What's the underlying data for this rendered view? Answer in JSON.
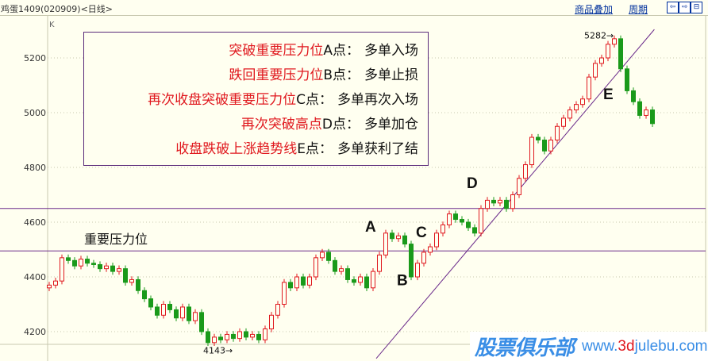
{
  "header": {
    "title": "鸡蛋1409(020909)<日线>",
    "overlay_link": "商品叠加",
    "period_link": "周期",
    "nav_icons": [
      "arrow-left-icon",
      "arrow-right-icon",
      "split-icon"
    ]
  },
  "chart_data": {
    "type": "candlestick",
    "panel_label": "K",
    "ylim": [
      4130,
      5300
    ],
    "yticks": [
      4200,
      4400,
      4600,
      4800,
      5000,
      5200
    ],
    "up_color": "#e0181e",
    "down_color": "#1a9a1a",
    "closes": [
      4370,
      4385,
      4470,
      4460,
      4440,
      4465,
      4450,
      4445,
      4430,
      4440,
      4420,
      4430,
      4380,
      4390,
      4350,
      4320,
      4290,
      4260,
      4300,
      4280,
      4250,
      4290,
      4240,
      4270,
      4200,
      4160,
      4180,
      4170,
      4190,
      4175,
      4200,
      4180,
      4190,
      4170,
      4210,
      4260,
      4300,
      4380,
      4360,
      4400,
      4370,
      4400,
      4470,
      4490,
      4460,
      4420,
      4430,
      4390,
      4380,
      4400,
      4360,
      4420,
      4480,
      4560,
      4540,
      4550,
      4520,
      4400,
      4450,
      4490,
      4510,
      4560,
      4590,
      4630,
      4610,
      4600,
      4580,
      4560,
      4650,
      4680,
      4670,
      4680,
      4650,
      4700,
      4760,
      4810,
      4910,
      4900,
      4860,
      4900,
      4950,
      4980,
      5010,
      5030,
      5050,
      5130,
      5180,
      5200,
      5250,
      5270,
      5160,
      5080,
      5040,
      4990,
      5010,
      4960
    ],
    "first_open": 4360,
    "max_label": "5282",
    "max_value": 5282,
    "min_label": "4143",
    "min_value": 4143,
    "hlines": [
      {
        "price": 4650,
        "color": "#6a2a8a"
      },
      {
        "price": 4495,
        "color": "#6a2a8a",
        "label": "重要压力位"
      }
    ],
    "trendline": {
      "from": [
        51.5,
        4102
      ],
      "to": [
        95.3,
        5304
      ],
      "color": "#6a2a8a"
    },
    "point_labels": [
      {
        "text": "A",
        "index": 50.5,
        "price": 4565
      },
      {
        "text": "B",
        "index": 55.5,
        "price": 4370
      },
      {
        "text": "C",
        "index": 58.5,
        "price": 4545
      },
      {
        "text": "D",
        "index": 66.5,
        "price": 4725
      },
      {
        "text": "E",
        "index": 88,
        "price": 5050
      }
    ]
  },
  "annotations": [
    {
      "condition": "突破重要压力位",
      "point": "A点：",
      "action": "多单入场"
    },
    {
      "condition": "跌回重要压力位",
      "point": "B点：",
      "action": "多单止损"
    },
    {
      "condition": "再次收盘突破重要压力位",
      "point": "C点：",
      "action": "多单再次入场"
    },
    {
      "condition": "再次突破高点",
      "point": "D点：",
      "action": "多单加仓"
    },
    {
      "condition": "收盘跌破上涨趋势线",
      "point": "E点：",
      "action": "多单获利了结"
    }
  ],
  "watermark": {
    "name": "股票俱乐部",
    "url": "www.3djulebu.com"
  }
}
